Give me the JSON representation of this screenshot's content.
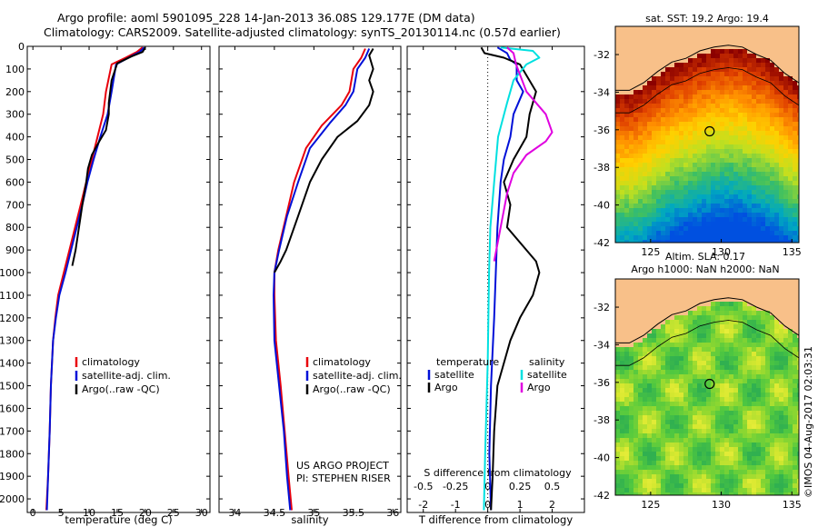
{
  "header": {
    "line1": "Argo profile: aoml 5901095_228 14-Jan-2013 36.08S 129.177E (DM data)",
    "line2": "Climatology: CARS2009. Satellite-adjusted climatology: synTS_20130114.nc (0.57d earlier)"
  },
  "colors": {
    "climatology": "#e8000b",
    "satellite": "#0010d8",
    "argo": "#000000",
    "satellite_salinity": "#00e0e0",
    "argo_salinity": "#e000e0",
    "land": "#f8c089"
  },
  "chart_data": [
    {
      "type": "line",
      "name": "temperature-profile",
      "xlabel": "temperature (deg C)",
      "ylabel": "",
      "xlim": [
        -1,
        31.5
      ],
      "ylim": [
        2060,
        0
      ],
      "xticks": [
        0,
        5,
        10,
        15,
        20,
        25,
        30
      ],
      "yticks": [
        0,
        100,
        200,
        300,
        400,
        500,
        600,
        700,
        800,
        900,
        1000,
        1100,
        1200,
        1300,
        1400,
        1500,
        1600,
        1700,
        1800,
        1900,
        2000
      ],
      "legend": [
        "climatology",
        "satellite-adj. clim.",
        "Argo(..raw -QC)"
      ],
      "legend_position": "lower-center",
      "series": [
        {
          "name": "climatology",
          "points": [
            [
              19.5,
              5
            ],
            [
              18.5,
              25
            ],
            [
              16.5,
              50
            ],
            [
              14,
              80
            ],
            [
              13,
              200
            ],
            [
              12.5,
              300
            ],
            [
              11.5,
              400
            ],
            [
              10.5,
              500
            ],
            [
              9.5,
              600
            ],
            [
              8.5,
              700
            ],
            [
              7.5,
              800
            ],
            [
              6.5,
              900
            ],
            [
              5.5,
              1000
            ],
            [
              4.5,
              1100
            ],
            [
              4,
              1200
            ],
            [
              3.6,
              1300
            ],
            [
              3.2,
              1500
            ],
            [
              3,
              1700
            ],
            [
              2.7,
              1900
            ],
            [
              2.4,
              2050
            ]
          ]
        },
        {
          "name": "satellite-adj. clim.",
          "points": [
            [
              19.8,
              5
            ],
            [
              19,
              25
            ],
            [
              17,
              50
            ],
            [
              14.8,
              80
            ],
            [
              14,
              200
            ],
            [
              13.3,
              300
            ],
            [
              12,
              400
            ],
            [
              10.8,
              500
            ],
            [
              9.7,
              600
            ],
            [
              8.8,
              700
            ],
            [
              7.8,
              800
            ],
            [
              6.8,
              900
            ],
            [
              5.8,
              1000
            ],
            [
              4.7,
              1100
            ],
            [
              4.1,
              1200
            ],
            [
              3.6,
              1300
            ],
            [
              3.2,
              1500
            ],
            [
              3,
              1700
            ],
            [
              2.7,
              1900
            ],
            [
              2.5,
              2050
            ]
          ]
        },
        {
          "name": "Argo(..raw -QC)",
          "points": [
            [
              20,
              5
            ],
            [
              19.5,
              25
            ],
            [
              17.5,
              45
            ],
            [
              15,
              75
            ],
            [
              14,
              150
            ],
            [
              13.5,
              250
            ],
            [
              13.5,
              300
            ],
            [
              13,
              370
            ],
            [
              11.8,
              420
            ],
            [
              10.5,
              480
            ],
            [
              9.8,
              540
            ],
            [
              9.5,
              600
            ],
            [
              8.8,
              700
            ],
            [
              8.2,
              800
            ],
            [
              7.6,
              900
            ],
            [
              7,
              970
            ]
          ]
        }
      ]
    },
    {
      "type": "line",
      "name": "salinity-profile",
      "xlabel": "salinity",
      "ylabel": "",
      "xlim": [
        33.8,
        36.1
      ],
      "ylim": [
        2060,
        0
      ],
      "xticks": [
        34,
        34.5,
        35,
        35.5,
        36
      ],
      "legend": [
        "climatology",
        "satellite-adj. clim.",
        "Argo(..raw -QC)"
      ],
      "legend_position": "lower-right",
      "annotation": [
        "US ARGO PROJECT",
        "PI: STEPHEN RISER"
      ],
      "series": [
        {
          "name": "climatology",
          "points": [
            [
              35.65,
              10
            ],
            [
              35.6,
              50
            ],
            [
              35.5,
              100
            ],
            [
              35.45,
              200
            ],
            [
              35.35,
              260
            ],
            [
              35.1,
              350
            ],
            [
              34.9,
              450
            ],
            [
              34.75,
              600
            ],
            [
              34.65,
              750
            ],
            [
              34.55,
              900
            ],
            [
              34.5,
              1000
            ],
            [
              34.5,
              1100
            ],
            [
              34.52,
              1300
            ],
            [
              34.58,
              1500
            ],
            [
              34.63,
              1700
            ],
            [
              34.68,
              1900
            ],
            [
              34.72,
              2050
            ]
          ]
        },
        {
          "name": "satellite-adj. clim.",
          "points": [
            [
              35.7,
              10
            ],
            [
              35.65,
              50
            ],
            [
              35.55,
              100
            ],
            [
              35.5,
              200
            ],
            [
              35.4,
              260
            ],
            [
              35.2,
              340
            ],
            [
              34.95,
              450
            ],
            [
              34.8,
              600
            ],
            [
              34.66,
              750
            ],
            [
              34.56,
              900
            ],
            [
              34.5,
              1000
            ],
            [
              34.49,
              1100
            ],
            [
              34.5,
              1300
            ],
            [
              34.56,
              1500
            ],
            [
              34.62,
              1700
            ],
            [
              34.66,
              1900
            ],
            [
              34.7,
              2050
            ]
          ]
        },
        {
          "name": "Argo(..raw -QC)",
          "points": [
            [
              35.75,
              10
            ],
            [
              35.7,
              40
            ],
            [
              35.75,
              100
            ],
            [
              35.7,
              150
            ],
            [
              35.75,
              200
            ],
            [
              35.7,
              260
            ],
            [
              35.55,
              330
            ],
            [
              35.3,
              400
            ],
            [
              35.1,
              500
            ],
            [
              34.95,
              600
            ],
            [
              34.8,
              750
            ],
            [
              34.65,
              900
            ],
            [
              34.58,
              950
            ],
            [
              34.5,
              1000
            ]
          ]
        }
      ]
    },
    {
      "type": "line",
      "name": "difference-profile",
      "xlabel": "T difference from climatology",
      "xlabel2": "S difference from climatology",
      "xlim": [
        -2.5,
        3.0
      ],
      "ylim": [
        2060,
        0
      ],
      "xticks": [
        -2,
        -1,
        0,
        1,
        2
      ],
      "xticks2": [
        -0.5,
        -0.25,
        0,
        0.25,
        0.5
      ],
      "xticklabels2": [
        "-0.5",
        "-0.25",
        "0",
        "0.25",
        "0.5"
      ],
      "legend_titles": [
        "temperature",
        "salinity"
      ],
      "legend": [
        "satellite",
        "Argo",
        "satellite",
        "Argo"
      ],
      "series": [
        {
          "name": "temperature satellite",
          "points": [
            [
              0.3,
              5
            ],
            [
              0.6,
              30
            ],
            [
              0.7,
              60
            ],
            [
              0.9,
              80
            ],
            [
              0.9,
              150
            ],
            [
              1.1,
              200
            ],
            [
              0.8,
              300
            ],
            [
              0.7,
              400
            ],
            [
              0.5,
              500
            ],
            [
              0.4,
              600
            ],
            [
              0.3,
              800
            ],
            [
              0.25,
              1000
            ],
            [
              0.2,
              1200
            ],
            [
              0.1,
              1500
            ],
            [
              0.05,
              1800
            ],
            [
              0.1,
              2050
            ]
          ]
        },
        {
          "name": "temperature Argo",
          "points": [
            [
              -0.2,
              5
            ],
            [
              -0.1,
              30
            ],
            [
              0.5,
              50
            ],
            [
              1.0,
              80
            ],
            [
              1.5,
              200
            ],
            [
              1.3,
              300
            ],
            [
              1.2,
              400
            ],
            [
              0.8,
              500
            ],
            [
              0.5,
              600
            ],
            [
              0.7,
              700
            ],
            [
              0.6,
              800
            ],
            [
              1.5,
              950
            ],
            [
              1.6,
              1000
            ],
            [
              1.4,
              1100
            ],
            [
              1.0,
              1200
            ],
            [
              0.7,
              1300
            ],
            [
              0.5,
              1400
            ],
            [
              0.3,
              1500
            ],
            [
              0.2,
              1700
            ],
            [
              0.15,
              1900
            ],
            [
              0.1,
              2050
            ]
          ]
        },
        {
          "name": "salinity satellite",
          "points": [
            [
              0.1,
              5
            ],
            [
              0.35,
              20
            ],
            [
              0.4,
              50
            ],
            [
              0.3,
              80
            ],
            [
              0.2,
              150
            ],
            [
              0.15,
              250
            ],
            [
              0.08,
              400
            ],
            [
              0.05,
              600
            ],
            [
              0.02,
              800
            ],
            [
              0.01,
              1000
            ],
            [
              0,
              1400
            ],
            [
              -0.02,
              1800
            ],
            [
              -0.03,
              2050
            ]
          ]
        },
        {
          "name": "salinity Argo",
          "points": [
            [
              0.15,
              5
            ],
            [
              0.2,
              30
            ],
            [
              0.22,
              80
            ],
            [
              0.3,
              200
            ],
            [
              0.45,
              300
            ],
            [
              0.5,
              380
            ],
            [
              0.45,
              420
            ],
            [
              0.3,
              480
            ],
            [
              0.2,
              560
            ],
            [
              0.15,
              650
            ],
            [
              0.1,
              800
            ],
            [
              0.05,
              950
            ]
          ]
        }
      ]
    },
    {
      "type": "heatmap",
      "name": "sst-map",
      "title": "sat. SST: 19.2  Argo: 19.4",
      "xlim": [
        122.5,
        135.5
      ],
      "ylim": [
        -42,
        -30.5
      ],
      "xticks": [
        125,
        130,
        135
      ],
      "yticks": [
        -42,
        -40,
        -38,
        -36,
        -34,
        -32
      ],
      "marker": {
        "lon": 129.177,
        "lat": -36.08
      },
      "colormap": "jet",
      "color_stops": [
        "#8b0000",
        "#e04000",
        "#ff9000",
        "#ffd000",
        "#c0e020",
        "#40c060",
        "#00a8c0",
        "#0050e0"
      ]
    },
    {
      "type": "heatmap",
      "name": "sla-map",
      "title": "Altim. SLA: 0.17",
      "title2": "Argo h1000: NaN  h2000: NaN",
      "xlim": [
        122.5,
        135.5
      ],
      "ylim": [
        -42,
        -30.5
      ],
      "xticks": [
        125,
        130,
        135
      ],
      "yticks": [
        -42,
        -40,
        -38,
        -36,
        -34,
        -32
      ],
      "marker": {
        "lon": 129.177,
        "lat": -36.08
      },
      "color_stops": [
        "#30b050",
        "#50c840",
        "#90d830",
        "#d8e830",
        "#f0f040"
      ]
    }
  ],
  "footer": {
    "credit": "©IMOS 04-Aug-2017 02:03:31"
  }
}
